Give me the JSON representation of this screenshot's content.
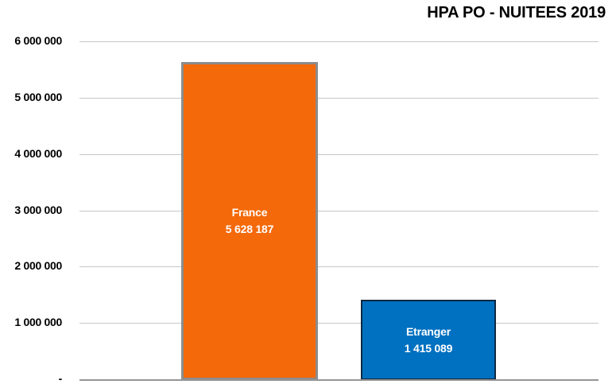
{
  "chart_data": {
    "type": "bar",
    "title": "HPA PO - NUITEES 2019",
    "categories": [
      "France",
      "Etranger"
    ],
    "values": [
      5628187,
      1415089
    ],
    "value_labels": [
      "5 628 187",
      "1 415 089"
    ],
    "series": [
      {
        "name": "France",
        "value": 5628187,
        "label": "5 628 187",
        "fill": "#F4690A",
        "border_color": "#8C8C8C",
        "border_width": 3
      },
      {
        "name": "Etranger",
        "value": 1415089,
        "label": "1 415 089",
        "fill": "#0070C0",
        "border_color": "#0E2841",
        "border_width": 2
      }
    ],
    "xlabel": "",
    "ylabel": "",
    "ylim": [
      0,
      6000000
    ],
    "grid": true,
    "legend": "none",
    "y_ticks": [
      {
        "value": 6000000,
        "label": "6 000 000"
      },
      {
        "value": 5000000,
        "label": "5 000 000"
      },
      {
        "value": 4000000,
        "label": "4 000 000"
      },
      {
        "value": 3000000,
        "label": "3 000 000"
      },
      {
        "value": 2000000,
        "label": "2 000 000"
      },
      {
        "value": 1000000,
        "label": "1 000 000"
      },
      {
        "value": 0,
        "label": "-"
      }
    ],
    "label_text_color": "#FFFFFF",
    "title_color": "#000000",
    "gridline_color": "#C7C7C7",
    "background_color": "#FFFFFF"
  }
}
